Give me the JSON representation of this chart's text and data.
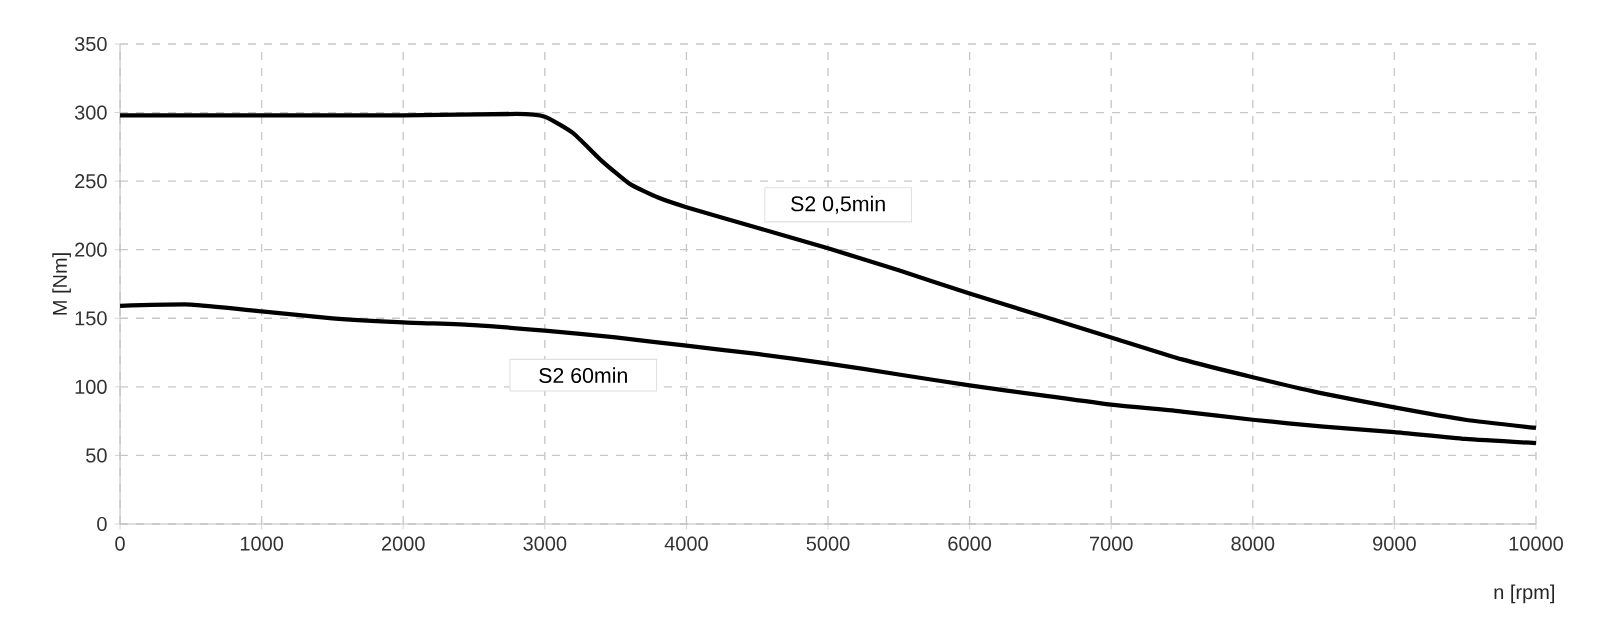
{
  "chart_data": {
    "type": "line",
    "xlabel": "n [rpm]",
    "ylabel": "M [Nm]",
    "xlim": [
      0,
      10000
    ],
    "ylim": [
      0,
      350
    ],
    "xticks": [
      0,
      1000,
      2000,
      3000,
      4000,
      5000,
      6000,
      7000,
      8000,
      9000,
      10000
    ],
    "yticks": [
      0,
      50,
      100,
      150,
      200,
      250,
      300,
      350
    ],
    "grid": true,
    "legend": false,
    "marker": "none",
    "line_style": "solid",
    "series": [
      {
        "name": "S2 0,5min",
        "color": "#000000",
        "x": [
          0,
          1000,
          2000,
          2800,
          3000,
          3200,
          3400,
          3600,
          3800,
          4000,
          4500,
          5000,
          5500,
          6000,
          6500,
          7000,
          7500,
          8000,
          8500,
          9000,
          9500,
          10000
        ],
        "values": [
          298,
          298,
          298,
          299,
          297,
          285,
          265,
          248,
          238,
          231,
          216,
          201,
          185,
          168,
          152,
          136,
          120,
          107,
          95,
          85,
          76,
          70
        ]
      },
      {
        "name": "S2 60min",
        "color": "#000000",
        "x": [
          0,
          500,
          1000,
          1500,
          2000,
          2500,
          3000,
          3500,
          4000,
          4500,
          5000,
          5500,
          6000,
          6500,
          7000,
          7500,
          8000,
          8500,
          9000,
          9500,
          10000
        ],
        "values": [
          159,
          160,
          155,
          150,
          147,
          145,
          141,
          136,
          130,
          124,
          117,
          109,
          101,
          94,
          87,
          82,
          76,
          71,
          67,
          62,
          59
        ]
      }
    ]
  }
}
